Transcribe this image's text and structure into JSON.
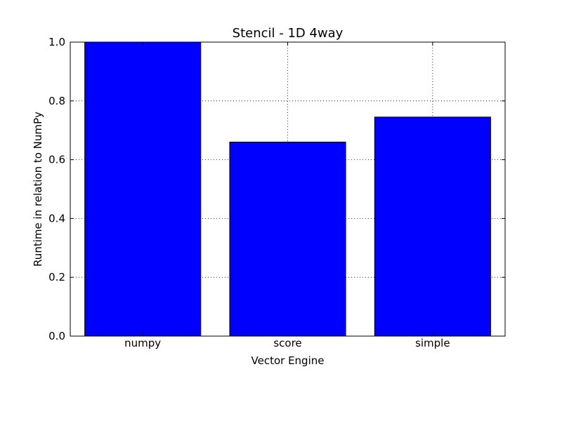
{
  "chart_data": {
    "type": "bar",
    "title": "Stencil - 1D 4way",
    "xlabel": "Vector Engine",
    "ylabel": "Runtime in relation to NumPy",
    "categories": [
      "numpy",
      "score",
      "simple"
    ],
    "values": [
      1.0,
      0.66,
      0.745
    ],
    "ylim": [
      0.0,
      1.0
    ],
    "yticks": [
      "0.0",
      "0.2",
      "0.4",
      "0.6",
      "0.8",
      "1.0"
    ],
    "grid": true,
    "legend": "none",
    "bar_color": "#0000ff",
    "edge_color": "#000000"
  }
}
